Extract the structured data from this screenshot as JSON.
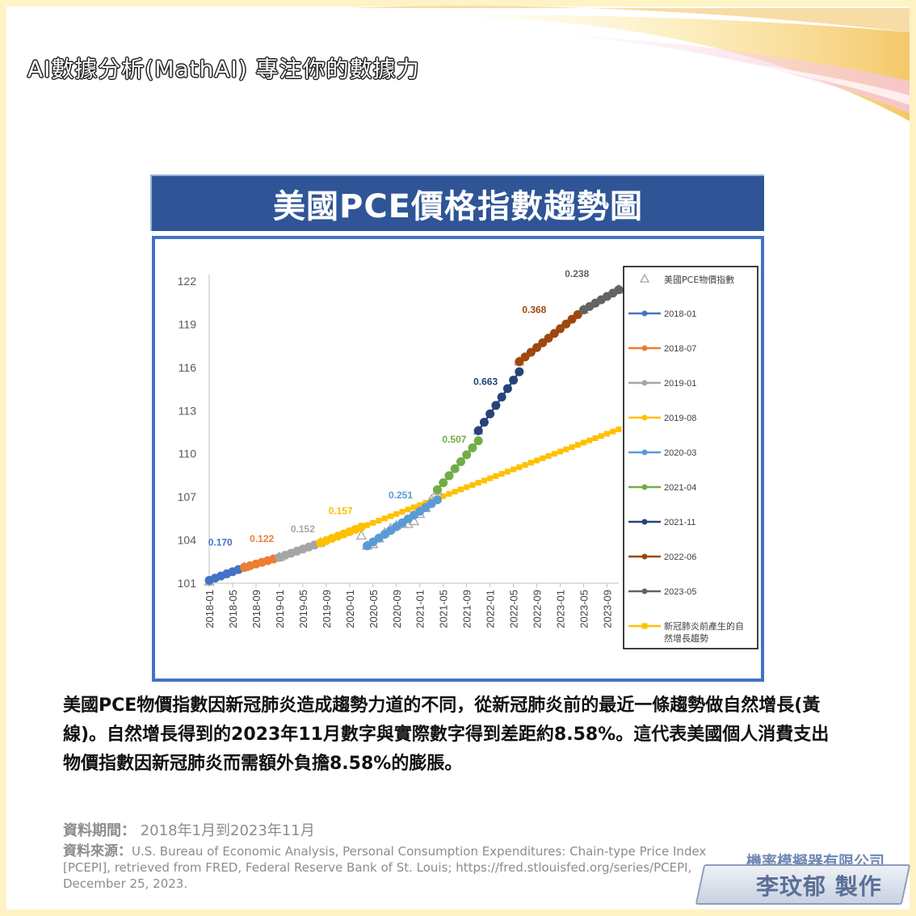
{
  "header": {
    "brand_title": "AI數據分析(MathAI) 專注你的數據力"
  },
  "chart_title": "美國PCE價格指數趨勢圖",
  "colors": {
    "frame": "#fdf3c4",
    "banner": "#2f5597",
    "chart_border": "#4472c4",
    "actual": "#a5a5a5"
  },
  "chart_data": {
    "type": "line",
    "title": "",
    "xlabel": "",
    "ylabel": "",
    "ylim": [
      101,
      122
    ],
    "yticks": [
      101,
      104,
      107,
      110,
      113,
      116,
      119,
      122
    ],
    "xlim": [
      "2018-01",
      "2023-11"
    ],
    "xticks": [
      "2018-01",
      "2018-05",
      "2018-09",
      "2019-01",
      "2019-05",
      "2019-09",
      "2020-01",
      "2020-05",
      "2020-09",
      "2021-01",
      "2021-05",
      "2021-09",
      "2022-01",
      "2022-05",
      "2022-09",
      "2023-01",
      "2023-05",
      "2023-09"
    ],
    "grid": false,
    "legend_position": "right",
    "actual": {
      "name": "美國PCE物價指數",
      "marker": "triangle",
      "color": "#a5a5a5",
      "x": [
        "2018-01",
        "2018-07",
        "2019-01",
        "2019-08",
        "2020-03",
        "2020-04",
        "2020-05",
        "2020-06",
        "2020-07",
        "2020-08",
        "2020-09",
        "2020-10",
        "2020-11",
        "2020-12",
        "2021-01",
        "2021-02",
        "2021-03",
        "2021-04",
        "2021-11",
        "2022-06",
        "2023-05",
        "2023-11"
      ],
      "y": [
        101.1,
        102.1,
        102.8,
        103.8,
        104.3,
        103.6,
        103.7,
        104.1,
        104.5,
        104.8,
        105.0,
        105.1,
        105.1,
        105.3,
        105.8,
        106.2,
        106.8,
        107.4,
        111.6,
        116.4,
        120.0,
        121.4
      ]
    },
    "series": [
      {
        "name": "2018-01",
        "color": "#4472c4",
        "slope_label": "0.170",
        "x": [
          "2018-01",
          "2018-07"
        ],
        "y": [
          101.2,
          102.1
        ]
      },
      {
        "name": "2018-07",
        "color": "#ed7d31",
        "slope_label": "0.122",
        "x": [
          "2018-07",
          "2019-01"
        ],
        "y": [
          102.1,
          102.8
        ]
      },
      {
        "name": "2019-01",
        "color": "#a5a5a5",
        "slope_label": "0.152",
        "x": [
          "2019-01",
          "2019-08"
        ],
        "y": [
          102.8,
          103.8
        ]
      },
      {
        "name": "2019-08",
        "color": "#ffc000",
        "slope_label": "0.157",
        "x": [
          "2019-08",
          "2020-03"
        ],
        "y": [
          103.8,
          104.9
        ]
      },
      {
        "name": "2020-03",
        "color": "#5b9bd5",
        "slope_label": "0.251",
        "x": [
          "2020-04",
          "2021-04"
        ],
        "y": [
          103.6,
          106.8
        ]
      },
      {
        "name": "2021-04",
        "color": "#70ad47",
        "slope_label": "0.507",
        "x": [
          "2021-04",
          "2021-11"
        ],
        "y": [
          107.5,
          110.9
        ]
      },
      {
        "name": "2021-11",
        "color": "#264478",
        "slope_label": "0.663",
        "x": [
          "2021-11",
          "2022-06"
        ],
        "y": [
          111.6,
          115.7
        ]
      },
      {
        "name": "2022-06",
        "color": "#9e480e",
        "slope_label": "0.368",
        "x": [
          "2022-06",
          "2023-05"
        ],
        "y": [
          116.4,
          120.0
        ]
      },
      {
        "name": "2023-05",
        "color": "#636363",
        "slope_label": "0.238",
        "x": [
          "2023-05",
          "2023-11"
        ],
        "y": [
          120.0,
          121.4
        ]
      },
      {
        "name": "新冠肺炎前產生的自然增長趨勢",
        "color": "#ffc000",
        "marker": "square",
        "x": [
          "2019-08",
          "2023-11"
        ],
        "y": [
          103.8,
          111.7
        ]
      }
    ]
  },
  "description": "美國PCE物價指數因新冠肺炎造成趨勢力道的不同，從新冠肺炎前的最近一條趨勢做自然增長(黃線)。自然增長得到的2023年11月數字與實際數字得到差距約8.58%。這代表美國個人消費支出物價指數因新冠肺炎而需額外負擔8.58%的膨脹。",
  "footer": {
    "period_label": "資料期間：",
    "period_value": "2018年1月到2023年11月",
    "source_label": "資料來源：",
    "source_text": "U.S. Bureau of Economic Analysis, Personal Consumption Expenditures: Chain-type Price Index [PCEPI], retrieved from FRED, Federal Reserve Bank of St. Louis; https://fred.stlouisfed.org/series/PCEPI, December 25, 2023.",
    "company": "機率模擬器有限公司",
    "maker": "李玟郁 製作"
  }
}
